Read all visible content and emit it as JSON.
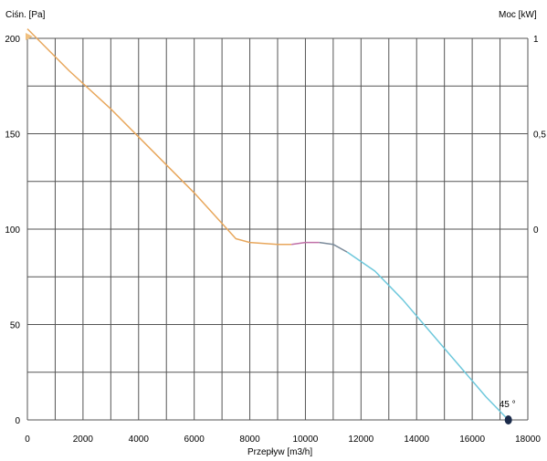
{
  "chart_data": {
    "type": "line",
    "title": "",
    "ylabel_left": "Ciśn. [Pa]",
    "ylabel_right": "Moc [kW]",
    "xlabel": "Przepływ [m3/h]",
    "xlim": [
      0,
      18000
    ],
    "ylim": [
      0,
      200
    ],
    "xticks": [
      "0",
      "2000",
      "4000",
      "6000",
      "8000",
      "10000",
      "12000",
      "14000",
      "16000",
      "18000"
    ],
    "yticks_left": [
      "0",
      "50",
      "100",
      "150",
      "200"
    ],
    "yticks_right": [
      {
        "label": "0",
        "value": 100
      },
      {
        "label": "0,5",
        "value": 150
      },
      {
        "label": "1",
        "value": 200
      }
    ],
    "grid": true,
    "series": [
      {
        "color": "#e8a75c",
        "x": [
          0,
          1500,
          3000,
          4500,
          6000,
          7000,
          7500,
          8000,
          9000,
          9500
        ],
        "y": [
          205,
          183,
          163,
          141,
          119,
          103,
          95,
          93,
          92,
          92
        ]
      },
      {
        "color": "#c070a8",
        "x": [
          9500,
          10000,
          10500
        ],
        "y": [
          92,
          93,
          93
        ]
      },
      {
        "color": "#7a8a9a",
        "x": [
          10500,
          11000,
          11500
        ],
        "y": [
          93,
          92,
          88
        ]
      },
      {
        "color": "#6ec8dc",
        "x": [
          11500,
          12500,
          13500,
          14500,
          15500,
          16500,
          17300
        ],
        "y": [
          88,
          78,
          63,
          46,
          29,
          12,
          0
        ]
      }
    ],
    "markers": [
      {
        "x": 17300,
        "y": 0,
        "label": "45 °"
      }
    ]
  },
  "colors": {
    "grid": "#555555",
    "marker": "#1a2a4a",
    "top_marker": "#f0c080"
  }
}
